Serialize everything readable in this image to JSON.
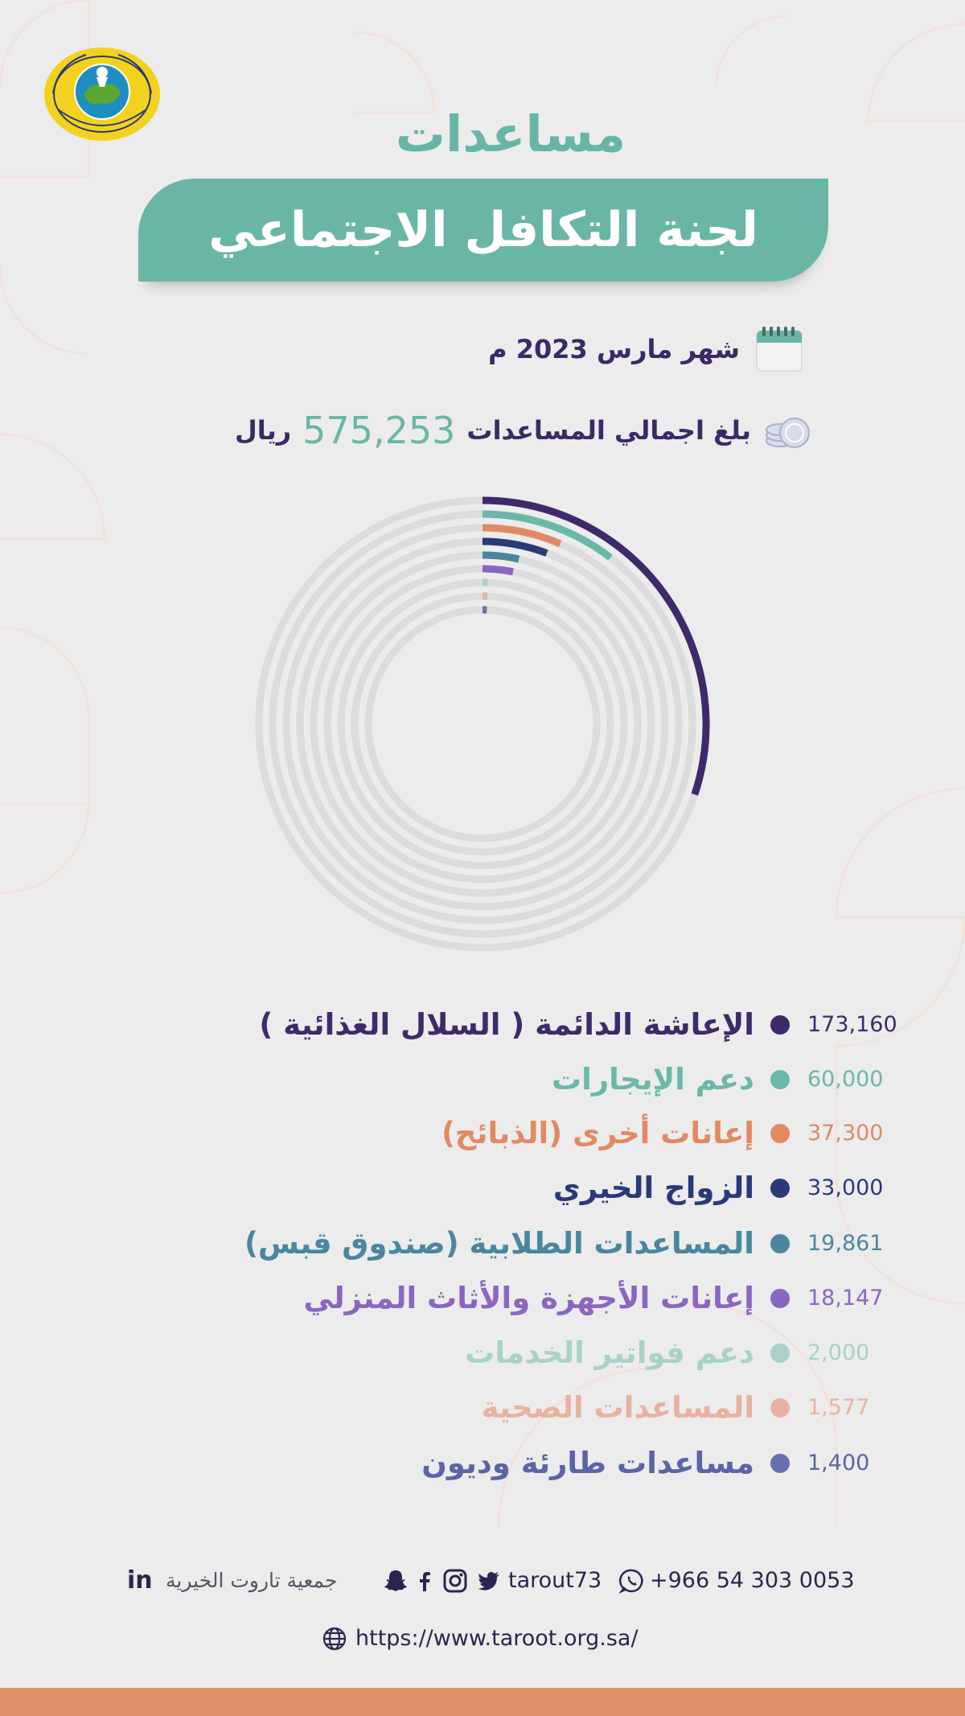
{
  "header": {
    "title_line1": "مساعدات",
    "title_line2": "لجنة التكافل الاجتماعي"
  },
  "info": {
    "month": "شهر مارس 2023 م",
    "total_prefix": "بلغ اجمالي المساعدات",
    "total_amount": "575,253",
    "total_unit": "ريال"
  },
  "icons": {
    "logo": "association-logo-seal",
    "calendar": "calendar-icon",
    "coins": "coins-icon",
    "whatsapp": "whatsapp-icon",
    "twitter": "twitter-icon",
    "instagram": "instagram-icon",
    "facebook": "facebook-icon",
    "snapchat": "snapchat-icon",
    "linkedin": "linkedin-icon",
    "globe": "globe-icon"
  },
  "colors": {
    "accent": "#6ab6a6",
    "heading": "#3b2a66",
    "track": "#dcdcdc",
    "bottom_bar": "#e0906a"
  },
  "chart_data": {
    "type": "radial-bar",
    "total": 575253,
    "categories": [
      "الإعاشة الدائمة ( السلال الغذائية )",
      "دعم الإيجارات",
      "إعانات أخرى (الذبائح)",
      "الزواج الخيري",
      "المساعدات الطلابية (صندوق قبس)",
      "إعانات الأجهزة والأثاث المنزلي",
      "دعم فواتير الخدمات",
      "المساعدات الصحية",
      "مساعدات طارئة وديون"
    ],
    "values": [
      173160,
      60000,
      37300,
      33000,
      19861,
      18147,
      2000,
      1577,
      1400
    ],
    "value_labels": [
      "173,160",
      "60,000",
      "37,300",
      "33,000",
      "19,861",
      "18,147",
      "2,000",
      "1,577",
      "1,400"
    ],
    "colors": [
      "#3e2a6b",
      "#6ab8a8",
      "#e08a64",
      "#2a3a78",
      "#4a86a0",
      "#8a66c0",
      "#a8d2c8",
      "#e8b2a0",
      "#6670b0"
    ],
    "label_colors": [
      "#3e2a6b",
      "#6ab8a8",
      "#e08a64",
      "#2a3a78",
      "#4a86a0",
      "#8a66c0",
      "#a8d2c8",
      "#e8b2a0",
      "#5a64a6"
    ],
    "value_colors": [
      "#3e2a6b",
      "#6ab8a8",
      "#e08a64",
      "#2a3a78",
      "#4a86a0",
      "#8a66c0",
      "#a8d2c8",
      "#e8b2a0",
      "#5a64a6"
    ]
  },
  "footer": {
    "phone": "+966 54 303 0053",
    "handle": "tarout73",
    "org_name": "جمعية تاروت الخيرية",
    "linkedin": "in",
    "website": "https://www.taroot.org.sa/"
  }
}
